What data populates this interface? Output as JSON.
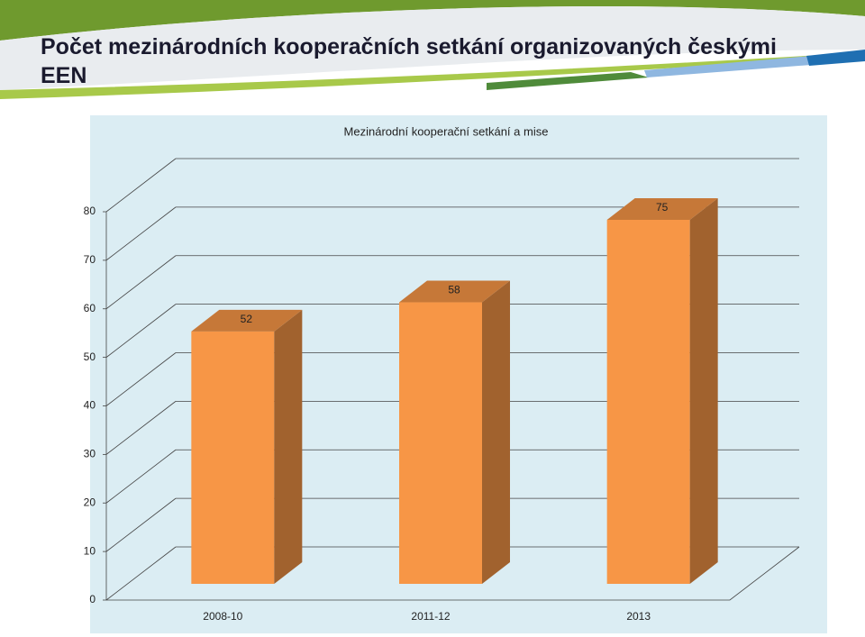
{
  "slide_title": "Počet mezinárodních kooperačních setkání organizovaných českými EEN",
  "chart_data": {
    "type": "bar3d",
    "title": "Mezinárodní kooperační setkání a mise",
    "categories": [
      "2008-10",
      "2011-12",
      "2013"
    ],
    "values": [
      52,
      58,
      75
    ],
    "color": "#f79646",
    "ylim": [
      0,
      80
    ],
    "yticks": [
      0,
      10,
      20,
      30,
      40,
      50,
      60,
      70,
      80
    ],
    "grid": true
  }
}
